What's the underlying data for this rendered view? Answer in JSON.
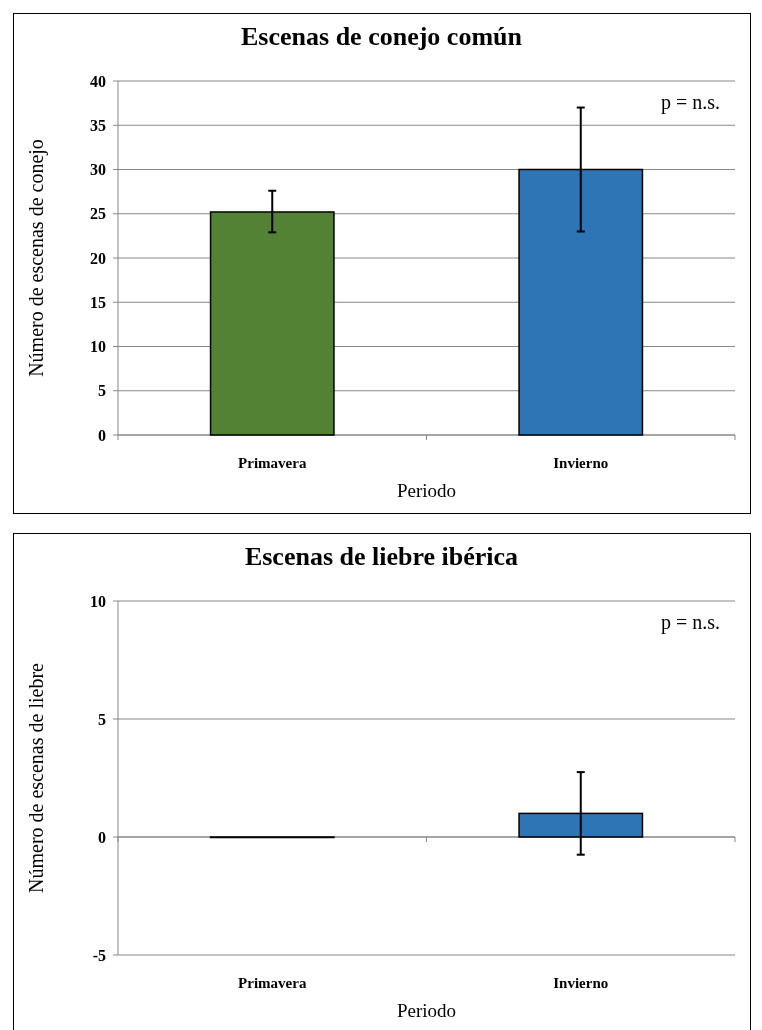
{
  "chart_data": [
    {
      "type": "bar",
      "title": "Escenas de conejo común",
      "xlabel": "Periodo",
      "ylabel": "Número de escenas de conejo",
      "categories": [
        "Primavera",
        "Invierno"
      ],
      "values": [
        25.2,
        30
      ],
      "colors": [
        "#548235",
        "#2e75b6"
      ],
      "errors": [
        [
          22.9,
          27.6
        ],
        [
          23,
          37
        ]
      ],
      "ylim": [
        0,
        40
      ],
      "yticks": [
        0,
        5,
        10,
        15,
        20,
        25,
        30,
        35,
        40
      ],
      "grid": "y",
      "annotations": [
        "p = n.s."
      ]
    },
    {
      "type": "bar",
      "title": "Escenas de liebre ibérica",
      "xlabel": "Periodo",
      "ylabel": "Número de escenas de liebre",
      "categories": [
        "Primavera",
        "Invierno"
      ],
      "values": [
        0,
        1
      ],
      "colors": [
        "#548235",
        "#2e75b6"
      ],
      "errors": [
        null,
        1.75
      ],
      "ylim": [
        -5,
        10
      ],
      "yticks": [
        -5,
        0,
        5,
        10
      ],
      "grid": "y",
      "annotations": [
        "p = n.s."
      ]
    }
  ]
}
